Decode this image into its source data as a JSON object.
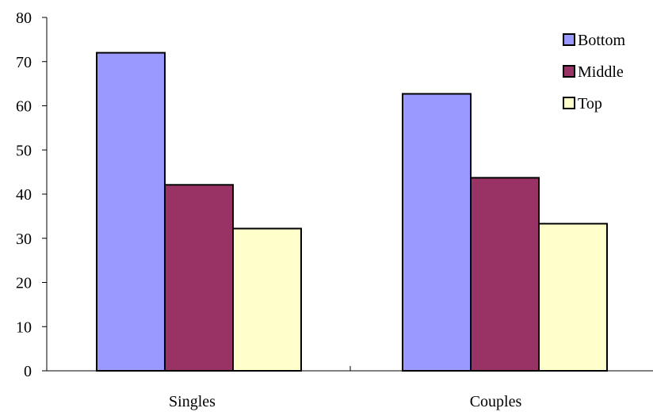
{
  "chart_data": {
    "type": "bar",
    "title": "",
    "xlabel": "",
    "ylabel": "",
    "categories": [
      "Singles",
      "Couples"
    ],
    "series": [
      {
        "name": "Bottom",
        "values": [
          72,
          62.7
        ],
        "color": "#9999ff"
      },
      {
        "name": "Middle",
        "values": [
          42.1,
          43.7
        ],
        "color": "#993366"
      },
      {
        "name": "Top",
        "values": [
          32.2,
          33.3
        ],
        "color": "#ffffcc"
      }
    ],
    "ylim": [
      0,
      80
    ],
    "yticks": [
      "0",
      "10",
      "20",
      "30",
      "40",
      "50",
      "60",
      "70",
      "80"
    ],
    "grid": false,
    "legend_position": "top-right"
  }
}
